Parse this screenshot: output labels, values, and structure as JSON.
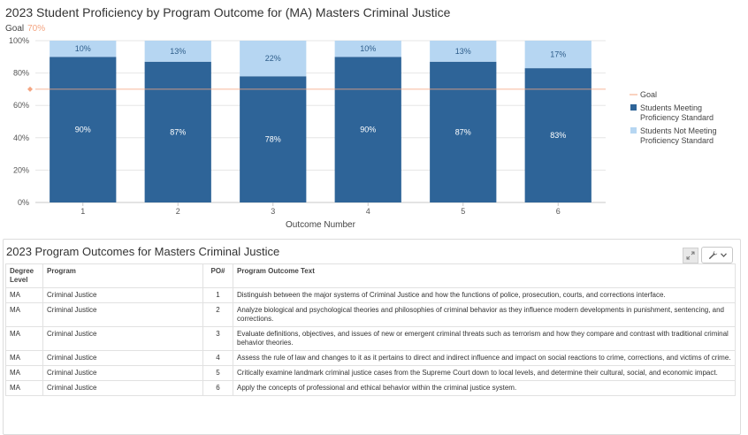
{
  "chart_title": "2023 Student Proficiency by Program Outcome for (MA) Masters Criminal Justice",
  "goal_label": "Goal",
  "goal_value_text": "70%",
  "colors": {
    "meeting": "#2e6498",
    "not_meeting": "#b6d6f2",
    "goal": "#f4a582",
    "grid": "#e6e6e6"
  },
  "chart_data": {
    "type": "bar",
    "stacked": true,
    "categories": [
      "1",
      "2",
      "3",
      "4",
      "5",
      "6"
    ],
    "series": [
      {
        "name": "Students Meeting Proficiency Standard",
        "values": [
          90,
          87,
          78,
          90,
          87,
          83
        ],
        "labels": [
          "90%",
          "87%",
          "78%",
          "90%",
          "87%",
          "83%"
        ]
      },
      {
        "name": "Students Not Meeting Proficiency Standard",
        "values": [
          10,
          13,
          22,
          10,
          13,
          17
        ],
        "labels": [
          "10%",
          "13%",
          "22%",
          "10%",
          "13%",
          "17%"
        ]
      }
    ],
    "goal": {
      "name": "Goal",
      "value": 70
    },
    "xlabel": "Outcome Number",
    "ylabel": "",
    "ylim": [
      0,
      100
    ],
    "yticks": [
      0,
      20,
      40,
      60,
      80,
      100
    ],
    "ytick_labels": [
      "0%",
      "20%",
      "40%",
      "60%",
      "80%",
      "100%"
    ],
    "grid": true,
    "legend_position": "right",
    "legend_lines": [
      {
        "key": "goal",
        "lines": [
          "Goal"
        ]
      },
      {
        "key": "meeting",
        "lines": [
          "Students Meeting",
          "Proficiency Standard"
        ]
      },
      {
        "key": "not_meeting",
        "lines": [
          "Students Not Meeting",
          "Proficiency Standard"
        ]
      }
    ]
  },
  "panel": {
    "title": "2023 Program Outcomes for Masters Criminal Justice",
    "expand_icon": "expand-icon",
    "settings_icon": "wrench-icon",
    "dropdown_icon": "chevron-down-icon"
  },
  "table": {
    "headers": {
      "degree_level": "Degree Level",
      "program": "Program",
      "po": "PO#",
      "text": "Program Outcome Text"
    },
    "rows": [
      {
        "degree": "MA",
        "program": "Criminal Justice",
        "po": "1",
        "text": "Distinguish between the major systems of Criminal Justice and how the functions of police, prosecution, courts, and corrections interface."
      },
      {
        "degree": "MA",
        "program": "Criminal Justice",
        "po": "2",
        "text": "Analyze biological and psychological theories and philosophies of criminal behavior as they influence modern developments in punishment, sentencing, and corrections."
      },
      {
        "degree": "MA",
        "program": "Criminal Justice",
        "po": "3",
        "text": "Evaluate definitions, objectives, and issues of new or emergent criminal threats such as terrorism and how they compare and contrast with traditional criminal behavior theories."
      },
      {
        "degree": "MA",
        "program": "Criminal Justice",
        "po": "4",
        "text": "Assess the rule of law and changes to it as it pertains to direct and indirect influence and impact on social reactions to crime, corrections, and victims of crime."
      },
      {
        "degree": "MA",
        "program": "Criminal Justice",
        "po": "5",
        "text": "Critically examine landmark criminal justice cases from the Supreme Court down to local levels, and determine their cultural, social, and economic impact."
      },
      {
        "degree": "MA",
        "program": "Criminal Justice",
        "po": "6",
        "text": "Apply the concepts of professional and ethical behavior within the criminal justice system."
      }
    ]
  }
}
